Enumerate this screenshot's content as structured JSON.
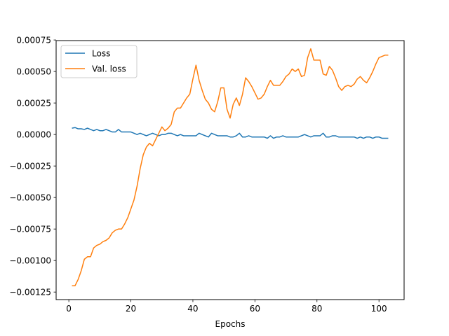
{
  "chart_data": {
    "type": "line",
    "title": "",
    "xlabel": "Epochs",
    "ylabel": "",
    "xlim": [
      -4.1,
      108.1
    ],
    "ylim": [
      -0.00131,
      0.000745
    ],
    "x_ticks": [
      0,
      20,
      40,
      60,
      80,
      100
    ],
    "x_tick_labels": [
      "0",
      "20",
      "40",
      "60",
      "80",
      "100"
    ],
    "y_ticks": [
      -0.00125,
      -0.001,
      -0.00075,
      -0.0005,
      -0.00025,
      0,
      0.00025,
      0.0005,
      0.00075
    ],
    "y_tick_labels": [
      "−0.00125",
      "−0.00100",
      "−0.00075",
      "−0.00050",
      "−0.00025",
      "0.00000",
      "0.00025",
      "0.00050",
      "0.00075"
    ],
    "grid": false,
    "legend_position": "upper-left",
    "x": [
      1,
      2,
      3,
      4,
      5,
      6,
      7,
      8,
      9,
      10,
      11,
      12,
      13,
      14,
      15,
      16,
      17,
      18,
      19,
      20,
      21,
      22,
      23,
      24,
      25,
      26,
      27,
      28,
      29,
      30,
      31,
      32,
      33,
      34,
      35,
      36,
      37,
      38,
      39,
      40,
      41,
      42,
      43,
      44,
      45,
      46,
      47,
      48,
      49,
      50,
      51,
      52,
      53,
      54,
      55,
      56,
      57,
      58,
      59,
      60,
      61,
      62,
      63,
      64,
      65,
      66,
      67,
      68,
      69,
      70,
      71,
      72,
      73,
      74,
      75,
      76,
      77,
      78,
      79,
      80,
      81,
      82,
      83,
      84,
      85,
      86,
      87,
      88,
      89,
      90,
      91,
      92,
      93,
      94,
      95,
      96,
      97,
      98,
      99,
      100,
      101,
      102,
      103
    ],
    "series": [
      {
        "name": "Loss",
        "color": "#1f77b4",
        "values": [
          5e-05,
          5.5e-05,
          4.5e-05,
          4.5e-05,
          4e-05,
          5e-05,
          4e-05,
          3e-05,
          4e-05,
          3e-05,
          3e-05,
          4e-05,
          3e-05,
          2e-05,
          2e-05,
          4e-05,
          2e-05,
          2e-05,
          2e-05,
          2e-05,
          1e-05,
          0.0,
          1e-05,
          0.0,
          -1e-05,
          0.0,
          1e-05,
          0.0,
          -1e-05,
          0.0,
          0.0,
          1e-05,
          1e-05,
          0.0,
          -1e-05,
          0.0,
          -1e-05,
          -1e-05,
          -1e-05,
          -1e-05,
          -1e-05,
          1e-05,
          0.0,
          -1e-05,
          -2e-05,
          1e-05,
          0.0,
          -1e-05,
          -1e-05,
          -1e-05,
          -1e-05,
          -2e-05,
          -2e-05,
          -1e-05,
          1e-05,
          -2e-05,
          -2e-05,
          -1e-05,
          -2e-05,
          -2e-05,
          -2e-05,
          -2e-05,
          -2e-05,
          -3e-05,
          -1e-05,
          -3e-05,
          -2e-05,
          -2e-05,
          -1e-05,
          -2e-05,
          -2e-05,
          -2e-05,
          -2e-05,
          -2e-05,
          -1e-05,
          0.0,
          -1e-05,
          -2e-05,
          -1e-05,
          -1e-05,
          -1e-05,
          1e-05,
          -2e-05,
          -2e-05,
          -1e-05,
          -1e-05,
          -2e-05,
          -2e-05,
          -2e-05,
          -2e-05,
          -2e-05,
          -2e-05,
          -3e-05,
          -2e-05,
          -3e-05,
          -2e-05,
          -2e-05,
          -3e-05,
          -2e-05,
          -2e-05,
          -3e-05,
          -3e-05,
          -3e-05
        ]
      },
      {
        "name": "Val. loss",
        "color": "#ff7f0e",
        "values": [
          -0.0012,
          -0.0012,
          -0.00115,
          -0.00108,
          -0.00099,
          -0.00097,
          -0.00097,
          -0.0009,
          -0.00088,
          -0.00087,
          -0.00085,
          -0.00084,
          -0.00082,
          -0.00078,
          -0.00076,
          -0.00075,
          -0.00075,
          -0.00071,
          -0.00066,
          -0.00059,
          -0.00052,
          -0.00041,
          -0.00027,
          -0.00016,
          -0.0001,
          -7e-05,
          -9e-05,
          -4e-05,
          1e-05,
          6e-05,
          3e-05,
          5e-05,
          8e-05,
          0.00018,
          0.00021,
          0.00021,
          0.00025,
          0.00029,
          0.00032,
          0.00044,
          0.00055,
          0.00043,
          0.00035,
          0.00028,
          0.00025,
          0.0002,
          0.00018,
          0.00026,
          0.00037,
          0.00037,
          0.0002,
          0.00013,
          0.00024,
          0.00029,
          0.00023,
          0.00032,
          0.00045,
          0.00042,
          0.00038,
          0.00033,
          0.00028,
          0.00029,
          0.00032,
          0.00038,
          0.00043,
          0.00039,
          0.00039,
          0.00039,
          0.00042,
          0.00046,
          0.00048,
          0.00052,
          0.0005,
          0.00052,
          0.00046,
          0.00047,
          0.00061,
          0.00068,
          0.00059,
          0.00059,
          0.00059,
          0.00048,
          0.00047,
          0.00054,
          0.00051,
          0.00045,
          0.00038,
          0.00035,
          0.00038,
          0.00039,
          0.00038,
          0.0004,
          0.00044,
          0.00046,
          0.00043,
          0.00041,
          0.00045,
          0.0005,
          0.00056,
          0.00061,
          0.00062,
          0.00063,
          0.00063
        ]
      }
    ]
  }
}
